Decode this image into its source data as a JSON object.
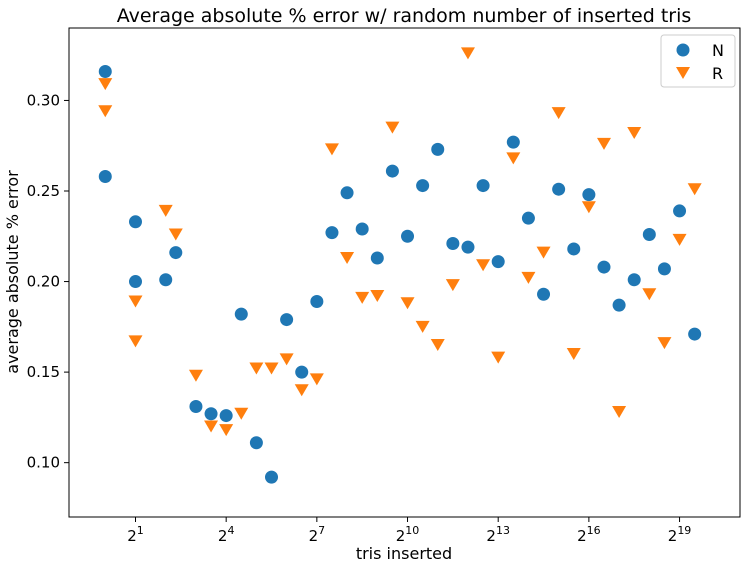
{
  "chart_data": {
    "type": "scatter",
    "title": "Average absolute % error w/ random number of inserted tris",
    "xlabel": "tris inserted",
    "ylabel": "average absolute % error",
    "xscale": "log2",
    "xlim": [
      -1.2,
      21
    ],
    "ylim": [
      0.07,
      0.34
    ],
    "xticks": [
      1,
      4,
      7,
      10,
      13,
      16,
      19
    ],
    "xtick_base": "2",
    "yticks": [
      0.1,
      0.15,
      0.2,
      0.25,
      0.3
    ],
    "ytick_labels": [
      "0.10",
      "0.15",
      "0.20",
      "0.25",
      "0.30"
    ],
    "grid": false,
    "legend_position": "top-right",
    "series": [
      {
        "name": "N",
        "color": "#1f77b4",
        "marker": "circle",
        "points": [
          [
            0,
            0.316
          ],
          [
            0,
            0.258
          ],
          [
            1,
            0.233
          ],
          [
            1,
            0.2
          ],
          [
            2,
            0.201
          ],
          [
            2.333,
            0.216
          ],
          [
            3,
            0.131
          ],
          [
            3.5,
            0.127
          ],
          [
            4,
            0.126
          ],
          [
            4.5,
            0.182
          ],
          [
            5,
            0.111
          ],
          [
            5.5,
            0.092
          ],
          [
            6,
            0.179
          ],
          [
            6.5,
            0.15
          ],
          [
            7,
            0.189
          ],
          [
            7.5,
            0.227
          ],
          [
            8,
            0.249
          ],
          [
            8.5,
            0.229
          ],
          [
            9,
            0.213
          ],
          [
            9.5,
            0.261
          ],
          [
            10,
            0.225
          ],
          [
            10.5,
            0.253
          ],
          [
            11,
            0.273
          ],
          [
            11.5,
            0.221
          ],
          [
            12,
            0.219
          ],
          [
            12.5,
            0.253
          ],
          [
            13,
            0.211
          ],
          [
            13.5,
            0.277
          ],
          [
            14,
            0.235
          ],
          [
            14.5,
            0.193
          ],
          [
            15,
            0.251
          ],
          [
            15.5,
            0.218
          ],
          [
            16,
            0.248
          ],
          [
            16.5,
            0.208
          ],
          [
            17,
            0.187
          ],
          [
            17.5,
            0.201
          ],
          [
            18,
            0.226
          ],
          [
            18.5,
            0.207
          ],
          [
            19,
            0.239
          ],
          [
            19.5,
            0.171
          ]
        ]
      },
      {
        "name": "R",
        "color": "#ff7f0e",
        "marker": "triangle-down",
        "points": [
          [
            0,
            0.309
          ],
          [
            0,
            0.294
          ],
          [
            1,
            0.189
          ],
          [
            1,
            0.167
          ],
          [
            2,
            0.239
          ],
          [
            2.333,
            0.226
          ],
          [
            3,
            0.148
          ],
          [
            3.5,
            0.12
          ],
          [
            4,
            0.118
          ],
          [
            4.5,
            0.127
          ],
          [
            5,
            0.152
          ],
          [
            5.5,
            0.152
          ],
          [
            6,
            0.157
          ],
          [
            6.5,
            0.14
          ],
          [
            7,
            0.146
          ],
          [
            7.5,
            0.273
          ],
          [
            8,
            0.213
          ],
          [
            8.5,
            0.191
          ],
          [
            9,
            0.192
          ],
          [
            9.5,
            0.285
          ],
          [
            10,
            0.188
          ],
          [
            10.5,
            0.175
          ],
          [
            11,
            0.165
          ],
          [
            11.5,
            0.198
          ],
          [
            12,
            0.326
          ],
          [
            12.5,
            0.209
          ],
          [
            13,
            0.158
          ],
          [
            13.5,
            0.268
          ],
          [
            14,
            0.202
          ],
          [
            14.5,
            0.216
          ],
          [
            15,
            0.293
          ],
          [
            15.5,
            0.16
          ],
          [
            16,
            0.241
          ],
          [
            16.5,
            0.276
          ],
          [
            17,
            0.128
          ],
          [
            17.5,
            0.282
          ],
          [
            18,
            0.193
          ],
          [
            18.5,
            0.166
          ],
          [
            19,
            0.223
          ],
          [
            19.5,
            0.251
          ]
        ]
      }
    ]
  }
}
